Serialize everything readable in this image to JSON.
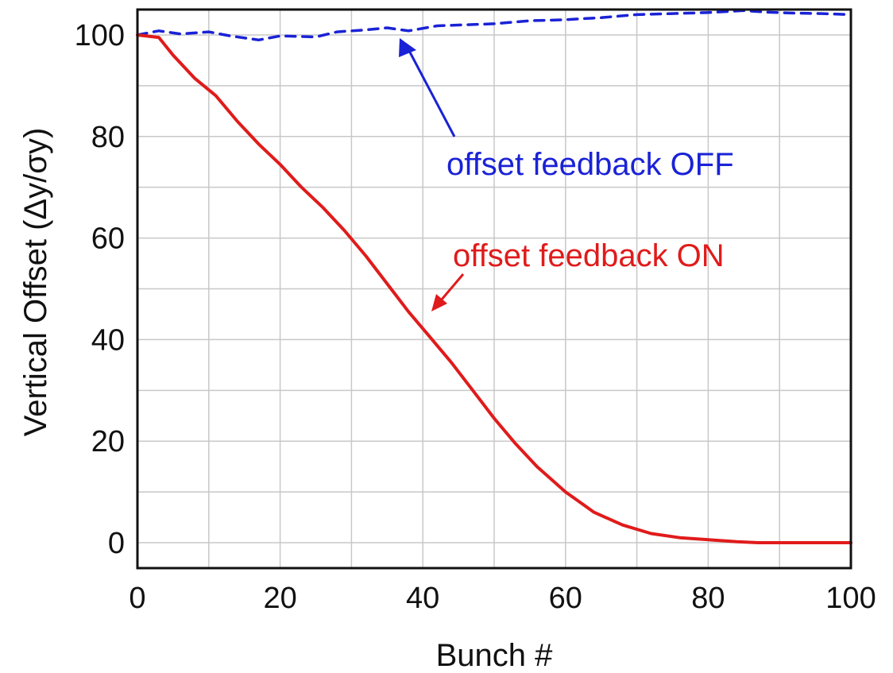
{
  "chart_data": {
    "type": "line",
    "xlabel": "Bunch #",
    "ylabel": "Vertical Offset (Δy/σy)",
    "xlim": [
      0,
      100
    ],
    "ylim": [
      -5,
      105
    ],
    "xticks": [
      0,
      20,
      40,
      60,
      80,
      100
    ],
    "yticks": [
      0,
      20,
      40,
      60,
      80,
      100
    ],
    "grid": true,
    "series": [
      {
        "name": "offset feedback OFF",
        "color": "#1a22d6",
        "style": "dashed",
        "x": [
          0,
          3,
          6,
          10,
          13,
          17,
          20,
          25,
          28,
          32,
          35,
          38,
          42,
          46,
          50,
          55,
          60,
          65,
          70,
          75,
          80,
          85,
          88,
          92,
          96,
          100
        ],
        "y": [
          100,
          100.8,
          100.2,
          100.6,
          99.8,
          99,
          99.8,
          99.6,
          100.6,
          101,
          101.4,
          100.8,
          101.8,
          102,
          102.2,
          102.8,
          103,
          103.4,
          104,
          104.2,
          104.4,
          104.8,
          104.5,
          104.3,
          104.2,
          104
        ]
      },
      {
        "name": "offset feedback ON",
        "color": "#e01b1b",
        "style": "solid",
        "x": [
          0,
          3,
          5,
          8,
          11,
          14,
          17,
          20,
          23,
          26,
          29,
          32,
          35,
          38,
          41,
          44,
          47,
          50,
          53,
          56,
          60,
          64,
          68,
          72,
          76,
          80,
          84,
          87,
          90,
          95,
          100
        ],
        "y": [
          100,
          99.5,
          96,
          91.5,
          88,
          83,
          78.5,
          74.5,
          70,
          66,
          61.5,
          56.5,
          51,
          45.5,
          40.5,
          35.5,
          30,
          24.5,
          19.5,
          15,
          10,
          6,
          3.5,
          1.8,
          1,
          0.6,
          0.2,
          0,
          0,
          0,
          0
        ]
      }
    ],
    "annotations": [
      {
        "text": "offset feedback OFF",
        "color": "#1a22d6",
        "series": 0
      },
      {
        "text": "offset feedback ON",
        "color": "#e01b1b",
        "series": 1
      }
    ]
  }
}
